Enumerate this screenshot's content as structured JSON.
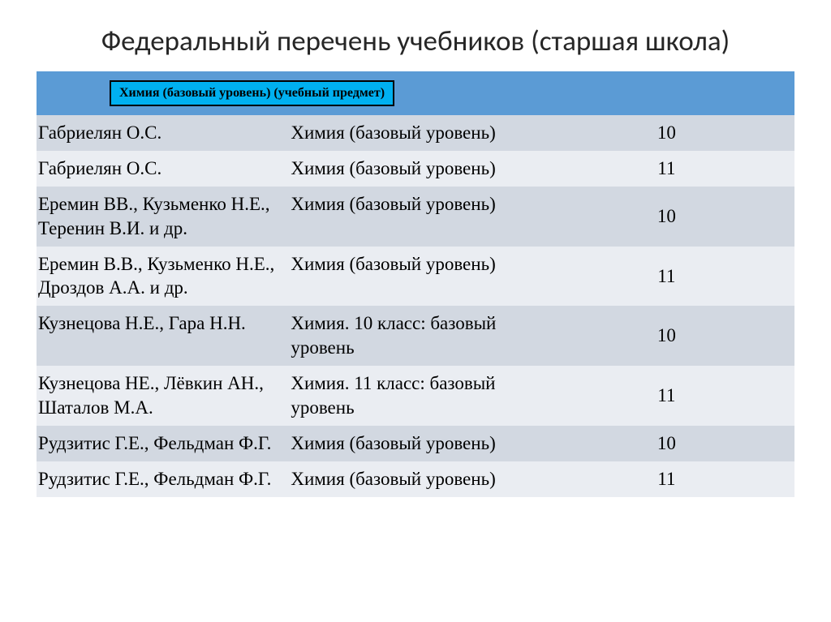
{
  "title": "Федеральный перечень учебников (старшая школа)",
  "subject_header": "Химия (базовый уровень) (учебный предмет)",
  "colors": {
    "header_bg": "#5b9bd5",
    "subject_box_bg": "#00b0f0",
    "subject_box_border": "#000000",
    "row_even": "#d2d8e1",
    "row_odd": "#eaedf2",
    "text": "#000000",
    "title_text": "#262626",
    "page_bg": "#ffffff"
  },
  "typography": {
    "title_fontsize": 35,
    "row_fontsize": 23,
    "grade_fontsize": 25,
    "subject_box_fontsize": 16,
    "title_family": "Calibri",
    "body_family": "Times New Roman"
  },
  "columns": {
    "author_width_pct": 48,
    "subject_width_pct": 37,
    "grade_width_pct": 15
  },
  "rows": [
    {
      "author": "Габриелян О.С.",
      "subject": "Химия (базовый уровень)",
      "grade": "10"
    },
    {
      "author": "Габриелян О.С.",
      "subject": "Химия (базовый уровень)",
      "grade": "11"
    },
    {
      "author": "Еремин ВВ., Кузьменко Н.Е., Теренин В.И. и др.",
      "subject": "Химия (базовый уровень)",
      "grade": "10"
    },
    {
      "author": "Еремин В.В., Кузьменко Н.Е., Дроздов А.А. и др.",
      "subject": "Химия (базовый уровень)",
      "grade": "11"
    },
    {
      "author": "Кузнецова Н.Е., Гара Н.Н.",
      "subject": "Химия. 10 класс: базовый уровень",
      "grade": "10"
    },
    {
      "author": "Кузнецова НЕ., Лёвкин АН., Шаталов М.А.",
      "subject": "Химия. 11 класс: базовый уровень",
      "grade": "11"
    },
    {
      "author": "Рудзитис Г.Е., Фельдман Ф.Г.",
      "subject": "Химия (базовый уровень)",
      "grade": "10"
    },
    {
      "author": "Рудзитис Г.Е., Фельдман Ф.Г.",
      "subject": "Химия (базовый уровень)",
      "grade": "11"
    }
  ]
}
